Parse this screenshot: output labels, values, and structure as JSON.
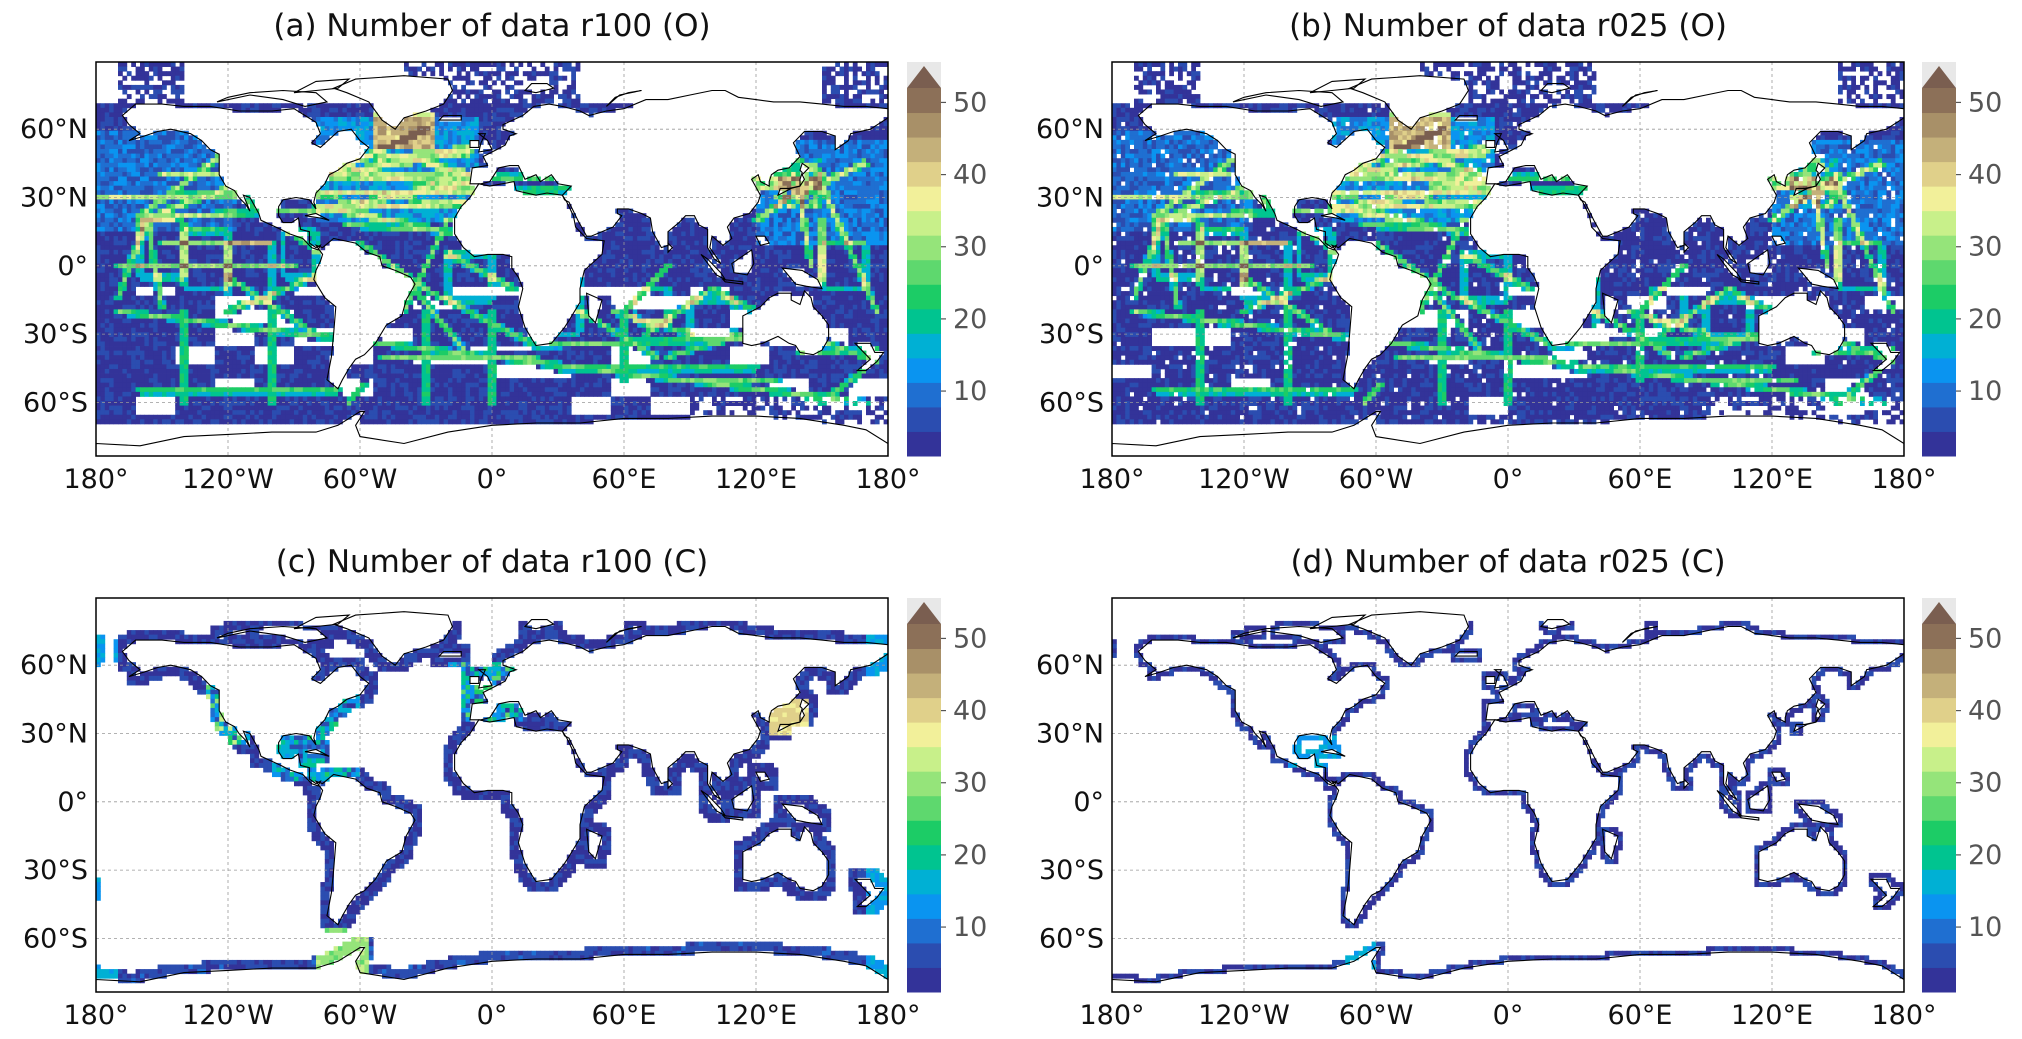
{
  "figure": {
    "panels": [
      {
        "id": "a",
        "title": "(a) Number of data r100 (O)",
        "kind": "ocean",
        "res": "coarse"
      },
      {
        "id": "b",
        "title": "(b) Number of data r025 (O)",
        "kind": "ocean",
        "res": "fine"
      },
      {
        "id": "c",
        "title": "(c) Number of data r100 (C)",
        "kind": "coast",
        "res": "coarse"
      },
      {
        "id": "d",
        "title": "(d) Number of data r025 (C)",
        "kind": "coast",
        "res": "fine"
      }
    ],
    "lon_ticks": [
      "180°",
      "120°W",
      "60°W",
      "0°",
      "60°E",
      "120°E",
      "180°"
    ],
    "lat_ticks": [
      "60°N",
      "30°N",
      "0°",
      "30°S",
      "60°S"
    ],
    "colorbar": {
      "ticks": [
        "10",
        "20",
        "30",
        "40",
        "50"
      ],
      "vmin": 1,
      "vmax": 52,
      "extend": "max",
      "cmap": "terrain",
      "colors": [
        "#333399",
        "#2b4db0",
        "#1f6fd1",
        "#0a94f0",
        "#00b0d4",
        "#00c490",
        "#1ccc66",
        "#5ed86e",
        "#95e47a",
        "#c8f08a",
        "#f2f09a",
        "#e0d08a",
        "#c4b07a",
        "#a89068",
        "#8c7058",
        "#7a5e50"
      ]
    }
  }
}
